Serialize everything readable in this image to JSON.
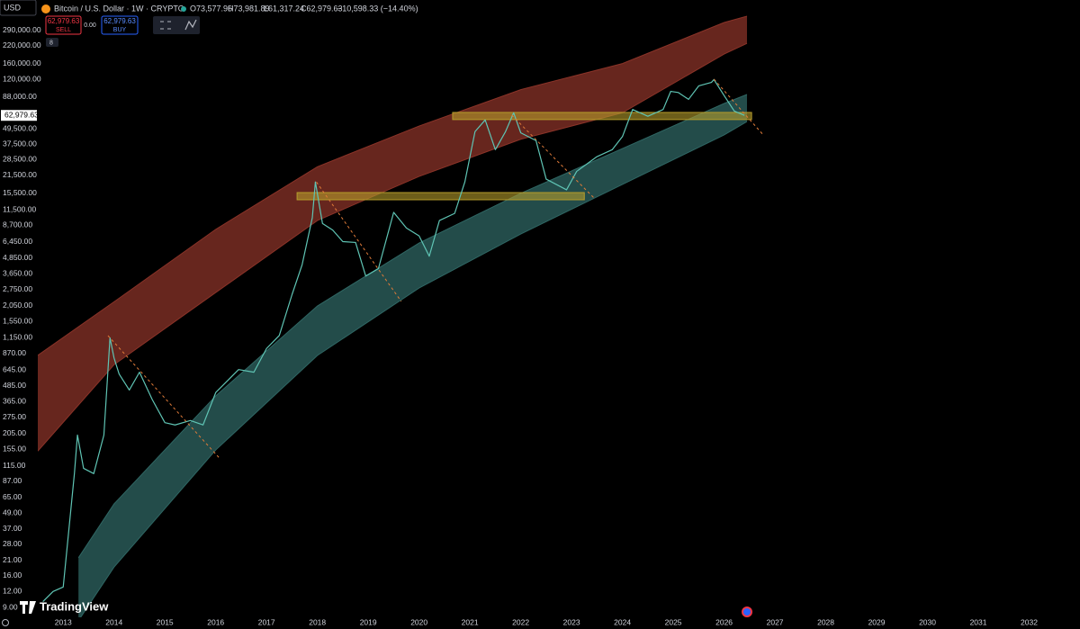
{
  "header": {
    "currency": "USD",
    "symbol": "Bitcoin / U.S. Dollar · 1W · CRYPTO",
    "open": "O73,577.96",
    "high": "H73,981.89",
    "low": "L61,317.24",
    "close": "C62,979.63",
    "change": "−10,598.33 (−14.40%)",
    "sell_price": "62,979.63",
    "sell": "SELL",
    "spread": "0.00",
    "buy_price": "62,979.63",
    "buy": "BUY",
    "indicators_count": "8"
  },
  "logo": "TradingView",
  "chart_data": {
    "type": "line",
    "log_scale": true,
    "color": "#5fc4b4",
    "x": [
      2012.6,
      2012.8,
      2013.0,
      2013.22,
      2013.28,
      2013.4,
      2013.6,
      2013.8,
      2013.92,
      2014.0,
      2014.1,
      2014.3,
      2014.5,
      2014.75,
      2015.0,
      2015.2,
      2015.5,
      2015.75,
      2016.0,
      2016.45,
      2016.75,
      2017.0,
      2017.25,
      2017.5,
      2017.7,
      2017.9,
      2017.96,
      2018.1,
      2018.3,
      2018.5,
      2018.75,
      2018.95,
      2019.2,
      2019.5,
      2019.75,
      2020.0,
      2020.2,
      2020.4,
      2020.7,
      2020.9,
      2021.1,
      2021.3,
      2021.5,
      2021.7,
      2021.86,
      2022.0,
      2022.3,
      2022.5,
      2022.9,
      2023.1,
      2023.5,
      2023.8,
      2024.0,
      2024.2,
      2024.5,
      2024.8,
      2024.95,
      2025.1,
      2025.3,
      2025.5,
      2025.75,
      2025.8,
      2026.0,
      2026.2,
      2026.4
    ],
    "values": [
      10,
      12,
      13,
      100,
      200,
      110,
      100,
      200,
      1150,
      800,
      600,
      450,
      620,
      380,
      250,
      240,
      260,
      240,
      430,
      650,
      620,
      950,
      1200,
      2500,
      4300,
      10000,
      19000,
      9000,
      8000,
      6500,
      6400,
      3500,
      4000,
      11000,
      8300,
      7200,
      5000,
      9500,
      10800,
      19000,
      47000,
      58000,
      34000,
      47000,
      66000,
      46000,
      40000,
      20000,
      16500,
      23000,
      30000,
      34000,
      43000,
      70000,
      62000,
      70000,
      97000,
      95000,
      84000,
      107000,
      114000,
      120000,
      90000,
      68000,
      62979.63
    ],
    "bands": [
      {
        "color": "#8a3328",
        "x": [
          2012.5,
          2014,
          2016,
          2018,
          2020,
          2022,
          2024,
          2026,
          2026.45
        ],
        "upper": [
          840,
          2200,
          8100,
          25000,
          52000,
          100000,
          160000,
          335000,
          375000
        ],
        "lower": [
          150,
          710,
          2600,
          9500,
          21000,
          41000,
          66000,
          190000,
          230000
        ]
      },
      {
        "color": "#2f6663",
        "x": [
          2013.3,
          2014,
          2016,
          2018,
          2020,
          2022,
          2024,
          2026,
          2026.45
        ],
        "upper": [
          22,
          58,
          405,
          2040,
          6340,
          15500,
          34700,
          78000,
          91700
        ],
        "lower": [
          7.1,
          18.6,
          153,
          838,
          2820,
          7450,
          18200,
          44300,
          56400
        ]
      }
    ],
    "zones": [
      {
        "color": "#b59d2c",
        "x": [
          2017.6,
          2023.25
        ],
        "y": [
          13800,
          15700
        ]
      },
      {
        "color": "#b59d2c",
        "x": [
          2020.66,
          2026.54
        ],
        "y": [
          58400,
          66400
        ]
      }
    ],
    "trendlines": [
      {
        "color": "#e07b39",
        "x": [
          2013.88,
          2016.06
        ],
        "y": [
          1197,
          134
        ]
      },
      {
        "color": "#e07b39",
        "x": [
          2017.98,
          2019.65
        ],
        "y": [
          19000,
          2214
        ]
      },
      {
        "color": "#e07b39",
        "x": [
          2021.82,
          2023.44
        ],
        "y": [
          63300,
          14260
        ]
      },
      {
        "color": "#e07b39",
        "x": [
          2025.8,
          2026.77
        ],
        "y": [
          120900,
          44300
        ]
      }
    ],
    "last_price": {
      "value": 62979.63,
      "label": "62,979.63"
    },
    "xlim": [
      2012.5,
      2033.0
    ],
    "xticks": [
      2013,
      2014,
      2015,
      2016,
      2017,
      2018,
      2019,
      2020,
      2021,
      2022,
      2023,
      2024,
      2025,
      2026,
      2027,
      2028,
      2029,
      2030,
      2031,
      2032
    ],
    "ylim": [
      7.66,
      427000
    ],
    "yticks": [
      {
        "value": 290000,
        "label": "290,000.00"
      },
      {
        "value": 220000,
        "label": "220,000.00"
      },
      {
        "value": 160000,
        "label": "160,000.00"
      },
      {
        "value": 120000,
        "label": "120,000.00"
      },
      {
        "value": 88000,
        "label": "88,000.00"
      },
      {
        "value": 49500,
        "label": "49,500.00"
      },
      {
        "value": 37500,
        "label": "37,500.00"
      },
      {
        "value": 28500,
        "label": "28,500.00"
      },
      {
        "value": 21500,
        "label": "21,500.00"
      },
      {
        "value": 15500,
        "label": "15,500.00"
      },
      {
        "value": 11500,
        "label": "11,500.00"
      },
      {
        "value": 8700,
        "label": "8,700.00"
      },
      {
        "value": 6450,
        "label": "6,450.00"
      },
      {
        "value": 4850,
        "label": "4,850.00"
      },
      {
        "value": 3650,
        "label": "3,650.00"
      },
      {
        "value": 2750,
        "label": "2,750.00"
      },
      {
        "value": 2050,
        "label": "2,050.00"
      },
      {
        "value": 1550,
        "label": "1,550.00"
      },
      {
        "value": 1150,
        "label": "1,150.00"
      },
      {
        "value": 870,
        "label": "870.00"
      },
      {
        "value": 645,
        "label": "645.00"
      },
      {
        "value": 485,
        "label": "485.00"
      },
      {
        "value": 365,
        "label": "365.00"
      },
      {
        "value": 275,
        "label": "275.00"
      },
      {
        "value": 205,
        "label": "205.00"
      },
      {
        "value": 155,
        "label": "155.00"
      },
      {
        "value": 115,
        "label": "115.00"
      },
      {
        "value": 87,
        "label": "87.00"
      },
      {
        "value": 65,
        "label": "65.00"
      },
      {
        "value": 49,
        "label": "49.00"
      },
      {
        "value": 37,
        "label": "37.00"
      },
      {
        "value": 28,
        "label": "28.00"
      },
      {
        "value": 21,
        "label": "21.00"
      },
      {
        "value": 16,
        "label": "16.00"
      },
      {
        "value": 12,
        "label": "12.00"
      },
      {
        "value": 9,
        "label": "9.00"
      }
    ]
  }
}
